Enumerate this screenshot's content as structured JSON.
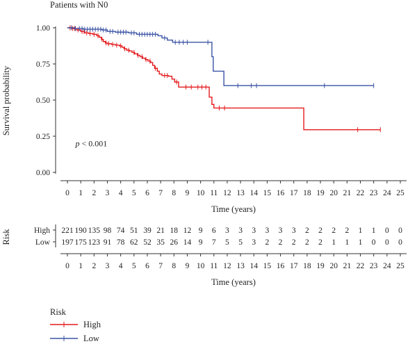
{
  "chart_data": {
    "type": "line",
    "subtype": "kaplan-meier",
    "title": "Patients with N0",
    "xlabel": "Time (years)",
    "ylabel": "Survival probability",
    "xlim": [
      0,
      25
    ],
    "ylim": [
      0,
      1
    ],
    "x_ticks": [
      0,
      1,
      2,
      3,
      4,
      5,
      6,
      7,
      8,
      9,
      10,
      11,
      12,
      13,
      14,
      15,
      16,
      17,
      18,
      19,
      20,
      21,
      22,
      23,
      24,
      25
    ],
    "y_ticks": [
      0,
      0.25,
      0.5,
      0.75,
      1
    ],
    "y_tick_labels": [
      "0.00",
      "0.25",
      "0.50",
      "0.75",
      "1.00"
    ],
    "annotation": {
      "italic": "p",
      "rest": " < 0.001",
      "x": 0.6,
      "y": 0.18
    },
    "legend_title": "Risk",
    "legend_position": "bottom-left",
    "series": [
      {
        "name": "High",
        "color": "#e41a1c",
        "steps": [
          [
            0,
            1.0
          ],
          [
            0.35,
            0.995
          ],
          [
            0.7,
            0.985
          ],
          [
            1.0,
            0.975
          ],
          [
            1.3,
            0.965
          ],
          [
            1.6,
            0.96
          ],
          [
            1.9,
            0.955
          ],
          [
            2.2,
            0.945
          ],
          [
            2.4,
            0.935
          ],
          [
            2.55,
            0.92
          ],
          [
            2.7,
            0.905
          ],
          [
            2.85,
            0.895
          ],
          [
            3.0,
            0.89
          ],
          [
            3.3,
            0.885
          ],
          [
            3.6,
            0.88
          ],
          [
            3.9,
            0.875
          ],
          [
            4.1,
            0.865
          ],
          [
            4.25,
            0.855
          ],
          [
            4.45,
            0.845
          ],
          [
            4.65,
            0.84
          ],
          [
            4.85,
            0.83
          ],
          [
            5.05,
            0.82
          ],
          [
            5.25,
            0.81
          ],
          [
            5.45,
            0.8
          ],
          [
            5.65,
            0.79
          ],
          [
            5.85,
            0.78
          ],
          [
            6.05,
            0.77
          ],
          [
            6.25,
            0.76
          ],
          [
            6.4,
            0.74
          ],
          [
            6.55,
            0.72
          ],
          [
            6.75,
            0.7
          ],
          [
            6.9,
            0.68
          ],
          [
            7.1,
            0.67
          ],
          [
            7.6,
            0.665
          ],
          [
            7.85,
            0.645
          ],
          [
            8.05,
            0.625
          ],
          [
            8.35,
            0.59
          ],
          [
            10.65,
            0.52
          ],
          [
            10.85,
            0.47
          ],
          [
            11.0,
            0.445
          ],
          [
            17.75,
            0.295
          ]
        ],
        "end_x": 23.5,
        "censor_x": [
          0.2,
          0.4,
          0.55,
          0.8,
          1.1,
          1.25,
          1.45,
          1.7,
          2.0,
          2.3,
          2.6,
          2.9,
          3.1,
          3.4,
          3.7,
          4.0,
          4.3,
          4.6,
          5.0,
          5.3,
          5.6,
          5.9,
          6.2,
          6.6,
          7.3,
          7.5,
          8.2,
          8.9,
          9.3,
          9.8,
          10.1,
          10.4,
          11.4,
          11.8,
          21.8,
          23.5
        ],
        "risk_counts": [
          221,
          190,
          135,
          98,
          74,
          51,
          39,
          21,
          18,
          12,
          9,
          6,
          3,
          3,
          3,
          3,
          3,
          3,
          2,
          2,
          2,
          2,
          1,
          1,
          0,
          0
        ]
      },
      {
        "name": "Low",
        "color": "#3b53a4",
        "steps": [
          [
            0,
            1.0
          ],
          [
            0.5,
            0.995
          ],
          [
            1.2,
            0.99
          ],
          [
            2.6,
            0.985
          ],
          [
            3.0,
            0.975
          ],
          [
            3.6,
            0.97
          ],
          [
            4.6,
            0.965
          ],
          [
            5.2,
            0.955
          ],
          [
            6.8,
            0.945
          ],
          [
            7.1,
            0.93
          ],
          [
            7.5,
            0.915
          ],
          [
            7.9,
            0.9
          ],
          [
            10.85,
            0.8
          ],
          [
            10.95,
            0.7
          ],
          [
            11.75,
            0.6
          ]
        ],
        "end_x": 23.0,
        "censor_x": [
          0.3,
          0.6,
          0.9,
          1.1,
          1.3,
          1.5,
          1.7,
          1.9,
          2.1,
          2.3,
          2.5,
          2.7,
          2.9,
          3.2,
          3.4,
          3.8,
          4.0,
          4.2,
          4.4,
          4.8,
          5.0,
          5.4,
          5.6,
          5.8,
          6.0,
          6.2,
          6.4,
          6.6,
          7.3,
          8.1,
          8.4,
          8.7,
          9.0,
          10.55,
          12.8,
          13.8,
          14.2,
          19.3,
          23.0
        ],
        "risk_counts": [
          197,
          175,
          123,
          91,
          78,
          62,
          52,
          35,
          26,
          14,
          9,
          7,
          5,
          5,
          3,
          2,
          2,
          2,
          2,
          2,
          1,
          1,
          1,
          0,
          0,
          0
        ]
      }
    ],
    "risk_table": {
      "title": "Risk",
      "xlabel": "Time (years)",
      "x_ticks": [
        0,
        1,
        2,
        3,
        4,
        5,
        6,
        7,
        8,
        9,
        10,
        11,
        12,
        13,
        14,
        15,
        16,
        17,
        18,
        19,
        20,
        21,
        22,
        23,
        24,
        25
      ]
    }
  }
}
